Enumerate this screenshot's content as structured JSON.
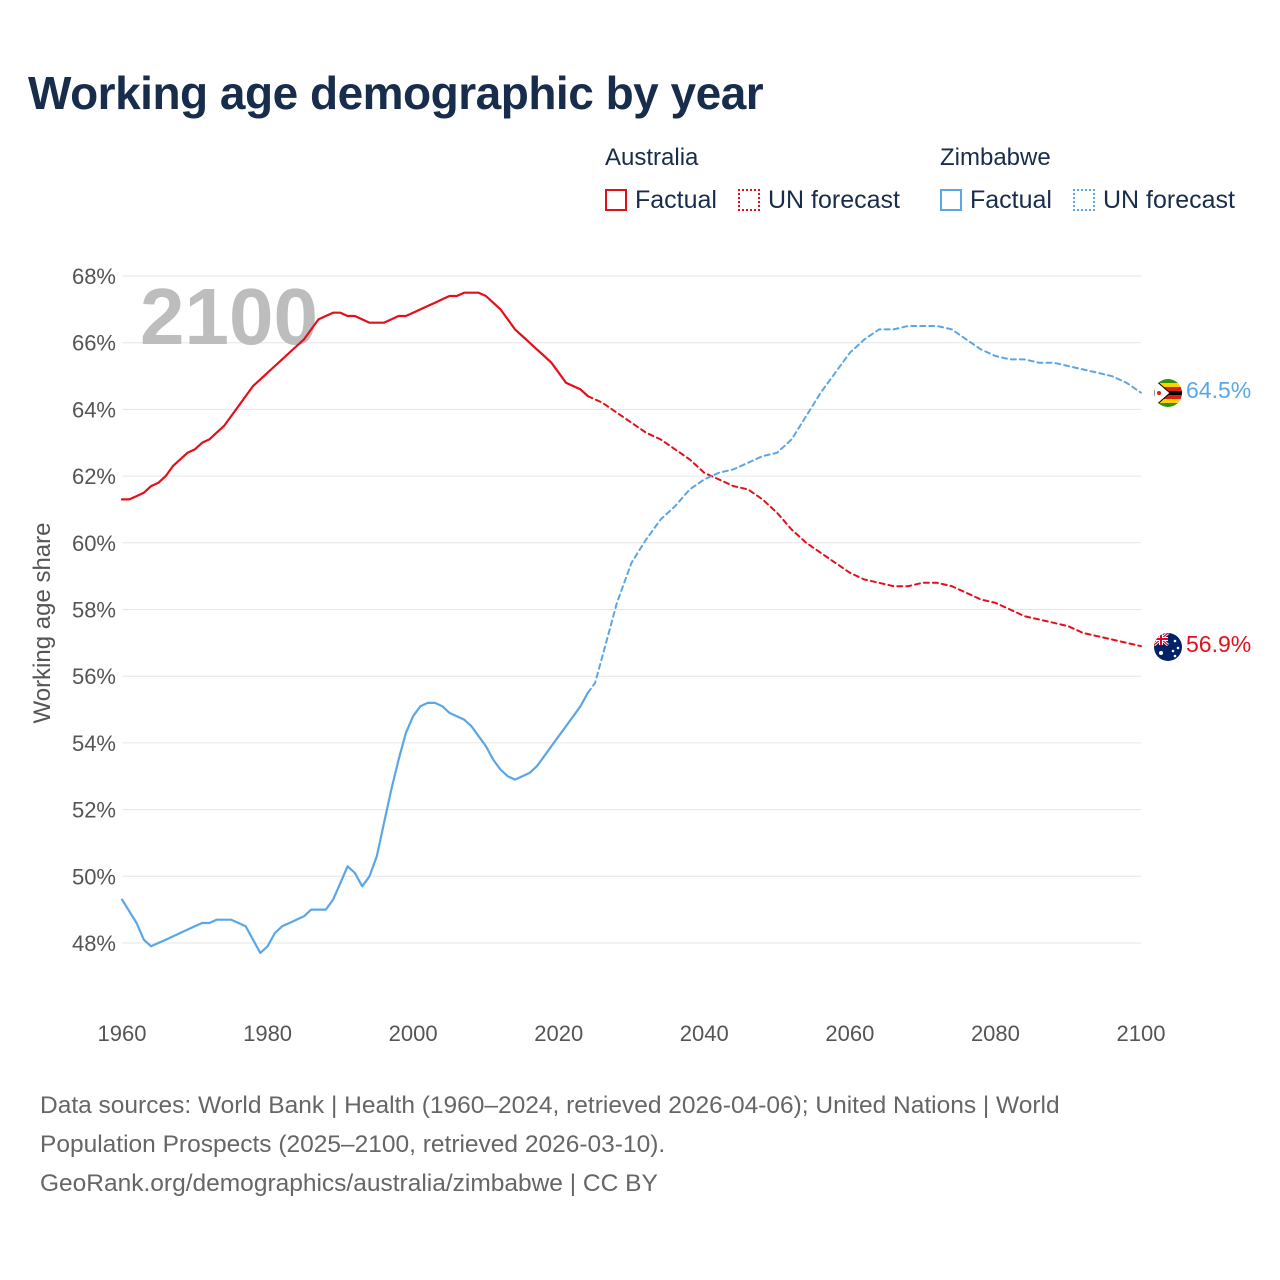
{
  "title": "Working age demographic by year",
  "legend": {
    "australia": {
      "name": "Australia",
      "factual": "Factual",
      "forecast": "UN forecast",
      "color": "#e3101b"
    },
    "zimbabwe": {
      "name": "Zimbabwe",
      "factual": "Factual",
      "forecast": "UN forecast",
      "color": "#5ba7e6"
    }
  },
  "footer": {
    "line1": "Data sources: World Bank | Health (1960–2024, retrieved 2026-04-06); United Nations | World",
    "line2": "Population Prospects (2025–2100, retrieved 2026-03-10).",
    "line3": "GeoRank.org/demographics/australia/zimbabwe | CC BY"
  },
  "chart_data": {
    "type": "line",
    "title": "Working age demographic by year",
    "year_overlay": "2100",
    "xlabel": "",
    "ylabel": "Working age share",
    "xlim": [
      1960,
      2100
    ],
    "ylim": [
      46.5,
      68
    ],
    "x_ticks": [
      1960,
      1980,
      2000,
      2020,
      2040,
      2060,
      2080,
      2100
    ],
    "y_ticks": [
      48,
      50,
      52,
      54,
      56,
      58,
      60,
      62,
      64,
      66,
      68
    ],
    "y_tick_suffix": "%",
    "grid": true,
    "legend_position": "top-right",
    "series": [
      {
        "name": "Australia",
        "kind": "Factual",
        "color": "#e3101b",
        "style": "solid",
        "x": [
          1960,
          1961,
          1962,
          1963,
          1964,
          1965,
          1966,
          1967,
          1968,
          1969,
          1970,
          1971,
          1972,
          1973,
          1974,
          1975,
          1976,
          1977,
          1978,
          1979,
          1980,
          1981,
          1982,
          1983,
          1984,
          1985,
          1986,
          1987,
          1988,
          1989,
          1990,
          1991,
          1992,
          1993,
          1994,
          1995,
          1996,
          1997,
          1998,
          1999,
          2000,
          2001,
          2002,
          2003,
          2004,
          2005,
          2006,
          2007,
          2008,
          2009,
          2010,
          2011,
          2012,
          2013,
          2014,
          2015,
          2016,
          2017,
          2018,
          2019,
          2020,
          2021,
          2022,
          2023,
          2024
        ],
        "y": [
          61.3,
          61.3,
          61.4,
          61.5,
          61.7,
          61.8,
          62.0,
          62.3,
          62.5,
          62.7,
          62.8,
          63.0,
          63.1,
          63.3,
          63.5,
          63.8,
          64.1,
          64.4,
          64.7,
          64.9,
          65.1,
          65.3,
          65.5,
          65.7,
          65.9,
          66.1,
          66.4,
          66.7,
          66.8,
          66.9,
          66.9,
          66.8,
          66.8,
          66.7,
          66.6,
          66.6,
          66.6,
          66.7,
          66.8,
          66.8,
          66.9,
          67.0,
          67.1,
          67.2,
          67.3,
          67.4,
          67.4,
          67.5,
          67.5,
          67.5,
          67.4,
          67.2,
          67.0,
          66.7,
          66.4,
          66.2,
          66.0,
          65.8,
          65.6,
          65.4,
          65.1,
          64.8,
          64.7,
          64.6,
          64.4
        ]
      },
      {
        "name": "Australia",
        "kind": "UN forecast",
        "color": "#e3101b",
        "style": "dashed",
        "x": [
          2024,
          2026,
          2028,
          2030,
          2032,
          2034,
          2036,
          2038,
          2040,
          2042,
          2044,
          2046,
          2048,
          2050,
          2052,
          2054,
          2056,
          2058,
          2060,
          2062,
          2064,
          2066,
          2068,
          2070,
          2072,
          2074,
          2076,
          2078,
          2080,
          2082,
          2084,
          2086,
          2088,
          2090,
          2092,
          2094,
          2096,
          2098,
          2100
        ],
        "y": [
          64.4,
          64.2,
          63.9,
          63.6,
          63.3,
          63.1,
          62.8,
          62.5,
          62.1,
          61.9,
          61.7,
          61.6,
          61.3,
          60.9,
          60.4,
          60.0,
          59.7,
          59.4,
          59.1,
          58.9,
          58.8,
          58.7,
          58.7,
          58.8,
          58.8,
          58.7,
          58.5,
          58.3,
          58.2,
          58.0,
          57.8,
          57.7,
          57.6,
          57.5,
          57.3,
          57.2,
          57.1,
          57.0,
          56.9
        ]
      },
      {
        "name": "Zimbabwe",
        "kind": "Factual",
        "color": "#5ba7e6",
        "style": "solid",
        "x": [
          1960,
          1962,
          1963,
          1964,
          1966,
          1968,
          1970,
          1971,
          1972,
          1973,
          1974,
          1975,
          1977,
          1979,
          1980,
          1981,
          1982,
          1983,
          1985,
          1986,
          1987,
          1988,
          1989,
          1990,
          1991,
          1992,
          1993,
          1994,
          1995,
          1996,
          1997,
          1998,
          1999,
          2000,
          2001,
          2002,
          2003,
          2004,
          2005,
          2006,
          2007,
          2008,
          2009,
          2010,
          2011,
          2012,
          2013,
          2014,
          2015,
          2016,
          2017,
          2018,
          2019,
          2020,
          2021,
          2022,
          2023,
          2024
        ],
        "y": [
          49.3,
          48.6,
          48.1,
          47.9,
          48.1,
          48.3,
          48.5,
          48.6,
          48.6,
          48.7,
          48.7,
          48.7,
          48.5,
          47.7,
          47.9,
          48.3,
          48.5,
          48.6,
          48.8,
          49.0,
          49.0,
          49.0,
          49.3,
          49.8,
          50.3,
          50.1,
          49.7,
          50.0,
          50.6,
          51.6,
          52.6,
          53.5,
          54.3,
          54.8,
          55.1,
          55.2,
          55.2,
          55.1,
          54.9,
          54.8,
          54.7,
          54.5,
          54.2,
          53.9,
          53.5,
          53.2,
          53.0,
          52.9,
          53.0,
          53.1,
          53.3,
          53.6,
          53.9,
          54.2,
          54.5,
          54.8,
          55.1,
          55.5
        ]
      },
      {
        "name": "Zimbabwe",
        "kind": "UN forecast",
        "color": "#5ba7e6",
        "style": "dashed",
        "x": [
          2024,
          2025,
          2026,
          2027,
          2028,
          2030,
          2032,
          2034,
          2036,
          2038,
          2040,
          2042,
          2044,
          2046,
          2048,
          2050,
          2052,
          2054,
          2056,
          2058,
          2060,
          2062,
          2064,
          2066,
          2068,
          2070,
          2072,
          2074,
          2076,
          2078,
          2080,
          2082,
          2084,
          2086,
          2088,
          2090,
          2092,
          2094,
          2096,
          2098,
          2100
        ],
        "y": [
          55.5,
          55.8,
          56.6,
          57.4,
          58.2,
          59.4,
          60.1,
          60.7,
          61.1,
          61.6,
          61.9,
          62.1,
          62.2,
          62.4,
          62.6,
          62.7,
          63.1,
          63.8,
          64.5,
          65.1,
          65.7,
          66.1,
          66.4,
          66.4,
          66.5,
          66.5,
          66.5,
          66.4,
          66.1,
          65.8,
          65.6,
          65.5,
          65.5,
          65.4,
          65.4,
          65.3,
          65.2,
          65.1,
          65.0,
          64.8,
          64.5
        ]
      }
    ],
    "end_labels": [
      {
        "series": "Zimbabwe",
        "value": 64.5,
        "text": "64.5%",
        "color": "#5ba7e6"
      },
      {
        "series": "Australia",
        "value": 56.9,
        "text": "56.9%",
        "color": "#e3101b"
      }
    ]
  }
}
